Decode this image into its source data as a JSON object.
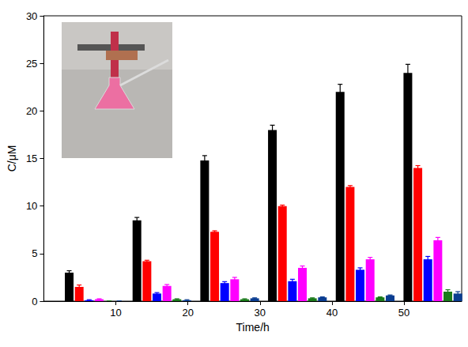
{
  "chart_data": {
    "type": "bar",
    "x_label": "Time/h",
    "y_label": "C/μM",
    "x": [
      7,
      16.4,
      25.8,
      35.2,
      44.6,
      54
    ],
    "xlim": [
      0,
      58
    ],
    "xticks": [
      10,
      20,
      30,
      40,
      50
    ],
    "ylim": [
      0,
      30
    ],
    "yticks": [
      0,
      5,
      10,
      15,
      20,
      25,
      30
    ],
    "grid": false,
    "series": [
      {
        "color": "#000000",
        "values": [
          3.0,
          8.5,
          14.8,
          18.0,
          22.0,
          24.0
        ],
        "errors": [
          0.2,
          0.3,
          0.5,
          0.5,
          0.8,
          0.9
        ]
      },
      {
        "color": "#ff0000",
        "values": [
          1.5,
          4.2,
          7.3,
          10.0,
          12.0,
          14.0
        ],
        "errors": [
          0.2,
          0.1,
          0.1,
          0.1,
          0.15,
          0.25
        ]
      },
      {
        "color": "#0000ff",
        "values": [
          0.1,
          0.8,
          1.9,
          2.1,
          3.3,
          4.4
        ],
        "errors": [
          0.05,
          0.1,
          0.15,
          0.2,
          0.2,
          0.3
        ]
      },
      {
        "color": "#ff00ff",
        "values": [
          0.2,
          1.6,
          2.3,
          3.5,
          4.4,
          6.4
        ],
        "errors": [
          0.05,
          0.15,
          0.2,
          0.2,
          0.2,
          0.3
        ]
      },
      {
        "color": "#1a7a1a",
        "values": [
          0.0,
          0.2,
          0.2,
          0.3,
          0.4,
          1.0
        ],
        "errors": [
          0.02,
          0.05,
          0.05,
          0.05,
          0.05,
          0.2
        ]
      },
      {
        "color": "#0a3d91",
        "values": [
          0.0,
          0.1,
          0.3,
          0.4,
          0.6,
          0.8
        ],
        "errors": [
          0.02,
          0.05,
          0.05,
          0.05,
          0.05,
          0.2
        ]
      }
    ]
  }
}
